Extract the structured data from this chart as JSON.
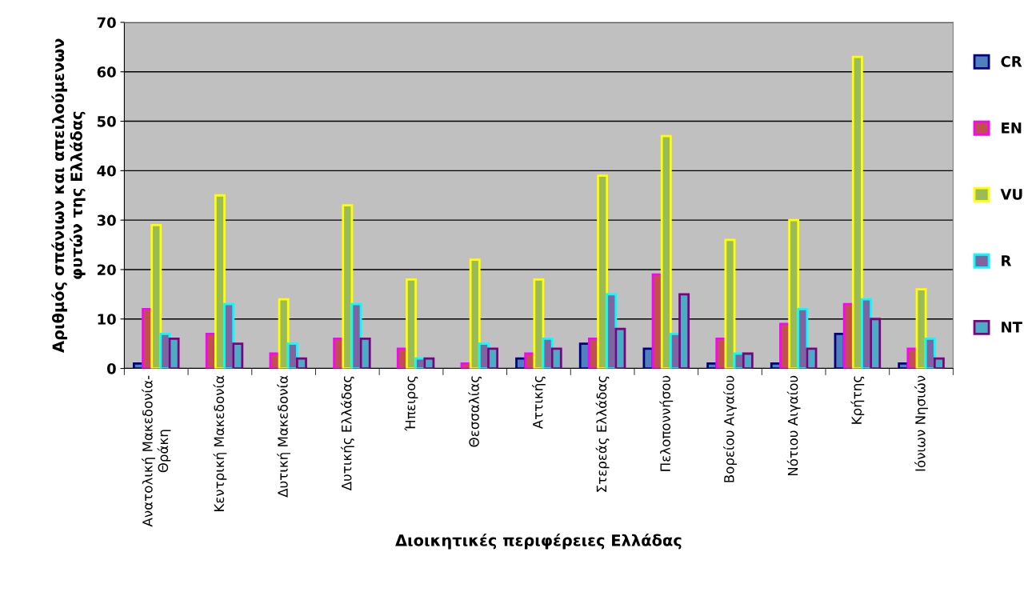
{
  "chart_data": {
    "type": "bar",
    "xlabel": "Διοικητικές περιφέρειες Ελλάδας",
    "ylabel": "Αριθμός σπάνιων και απειλούμενων\nφυτών της Ελλάδας",
    "categories": [
      "Ανατολική Μακεδονία-\nΘράκη",
      "Κεντρική Μακεδονία",
      "Δυτική Μακεδονία",
      "Δυτικής Ελλάδας",
      "Ήπειρος",
      "Θεσσαλίας",
      "Αττικής",
      "Στερεάς Ελλάδας",
      "Πελοποννήσου",
      "Βορείου Αιγαίου",
      "Νότιου Αιγαίου",
      "Κρήτης",
      "Ιόνιων Νησιών"
    ],
    "series": [
      {
        "name": "CR",
        "color": "#4f81bd",
        "values": [
          1,
          0,
          0,
          0,
          0,
          0,
          2,
          5,
          4,
          1,
          1,
          7,
          1
        ]
      },
      {
        "name": "EN",
        "color": "#c0504d",
        "values": [
          12,
          7,
          3,
          6,
          4,
          1,
          3,
          6,
          19,
          6,
          9,
          13,
          4
        ]
      },
      {
        "name": "VU",
        "color": "#9bbb59",
        "values": [
          29,
          35,
          14,
          33,
          18,
          22,
          18,
          39,
          47,
          26,
          30,
          63,
          16
        ]
      },
      {
        "name": "R",
        "color": "#8064a2",
        "values": [
          7,
          13,
          5,
          13,
          2,
          5,
          6,
          15,
          7,
          3,
          12,
          14,
          6
        ]
      },
      {
        "name": "NT",
        "color": "#4bacc6",
        "values": [
          6,
          5,
          2,
          6,
          2,
          4,
          4,
          8,
          15,
          3,
          4,
          10,
          2
        ]
      }
    ],
    "ylim": [
      0,
      70
    ],
    "yticks": [
      0,
      10,
      20,
      30,
      40,
      50,
      60,
      70
    ],
    "grid": "y",
    "legend": "right"
  }
}
